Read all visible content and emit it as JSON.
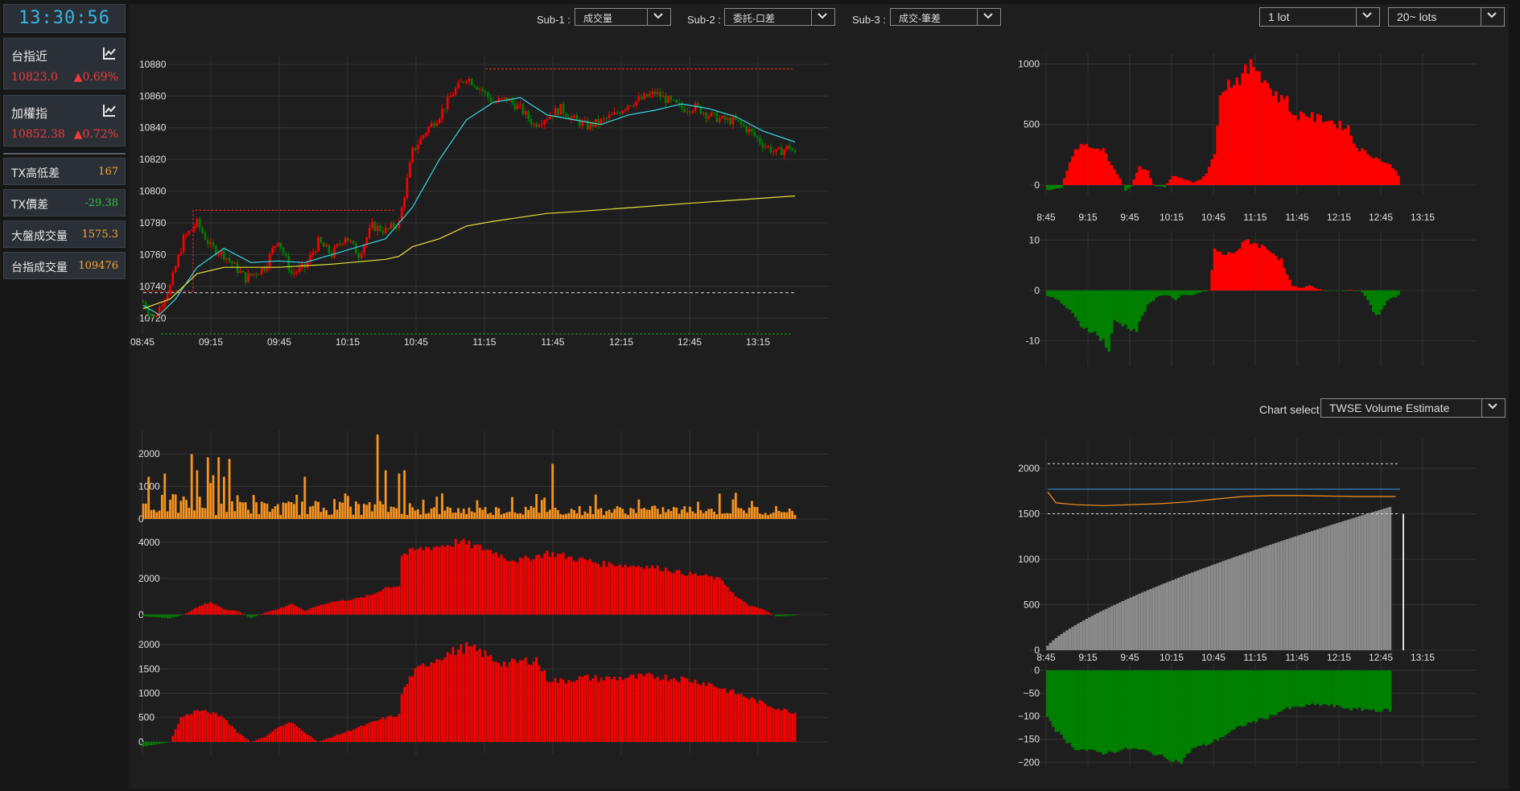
{
  "clock": "13:30:56",
  "quotes": [
    {
      "name": "台指近",
      "price": "10823.0",
      "change": "0.69%"
    },
    {
      "name": "加權指",
      "price": "10852.38",
      "change": "0.72%"
    }
  ],
  "stats": [
    {
      "label": "TX高低差",
      "value": "167",
      "color": "#f2a83a"
    },
    {
      "label": "TX價差",
      "value": "-29.38",
      "color": "#2fbf4a"
    },
    {
      "label": "大盤成交量",
      "value": "1575.3",
      "color": "#f2a83a"
    },
    {
      "label": "台指成交量",
      "value": "109476",
      "color": "#f2a83a"
    }
  ],
  "toolbar": {
    "sub1_label": "Sub-1 :",
    "sub1_value": "成交量",
    "sub2_label": "Sub-2 :",
    "sub2_value": "委託-口差",
    "sub3_label": "Sub-3 :",
    "sub3_value": "成交-筆差",
    "lot_value": "1 lot",
    "lots_value": "20~ lots"
  },
  "chart_select": {
    "label": "Chart select:",
    "value": "TWSE Volume Estimate"
  },
  "colors": {
    "up": "#ff0000",
    "down": "#008000",
    "vol": "#f7931e",
    "ma_short": "#35d6e6",
    "ma_long": "#e8e03a",
    "est_bar": "#8a8a8a"
  },
  "icons": {
    "quote_chart": "chart-line-icon",
    "dropdown": "chevron-down-icon"
  },
  "chart_data": [
    {
      "id": "main",
      "type": "candlestick",
      "x_ticks": [
        "08:45",
        "09:15",
        "09:45",
        "10:15",
        "10:45",
        "11:15",
        "11:45",
        "12:15",
        "12:45",
        "13:15"
      ],
      "y_ticks": [
        "10720",
        "10740",
        "10760",
        "10780",
        "10800",
        "10820",
        "10840",
        "10860",
        "10880"
      ],
      "ylim": [
        10710,
        10885
      ],
      "high": 10877,
      "low": 10710,
      "reference": 10736,
      "close_path": [
        [
          0,
          10730
        ],
        [
          4,
          10720
        ],
        [
          10,
          10740
        ],
        [
          15,
          10770
        ],
        [
          20,
          10780
        ],
        [
          25,
          10765
        ],
        [
          30,
          10760
        ],
        [
          38,
          10745
        ],
        [
          45,
          10752
        ],
        [
          50,
          10770
        ],
        [
          55,
          10748
        ],
        [
          60,
          10752
        ],
        [
          65,
          10768
        ],
        [
          70,
          10760
        ],
        [
          75,
          10772
        ],
        [
          80,
          10760
        ],
        [
          85,
          10778
        ],
        [
          90,
          10775
        ],
        [
          95,
          10780
        ],
        [
          100,
          10825
        ],
        [
          105,
          10838
        ],
        [
          110,
          10848
        ],
        [
          115,
          10862
        ],
        [
          120,
          10872
        ],
        [
          125,
          10865
        ],
        [
          130,
          10856
        ],
        [
          135,
          10858
        ],
        [
          140,
          10852
        ],
        [
          145,
          10842
        ],
        [
          150,
          10847
        ],
        [
          155,
          10852
        ],
        [
          160,
          10845
        ],
        [
          165,
          10841
        ],
        [
          170,
          10844
        ],
        [
          175,
          10848
        ],
        [
          180,
          10855
        ],
        [
          185,
          10858
        ],
        [
          190,
          10862
        ],
        [
          195,
          10857
        ],
        [
          200,
          10852
        ],
        [
          205,
          10853
        ],
        [
          210,
          10848
        ],
        [
          215,
          10845
        ],
        [
          220,
          10844
        ],
        [
          225,
          10838
        ],
        [
          230,
          10830
        ],
        [
          235,
          10824
        ],
        [
          240,
          10828
        ],
        [
          242,
          10823
        ]
      ],
      "ma_short": [
        [
          0,
          10728
        ],
        [
          6,
          10722
        ],
        [
          12,
          10732
        ],
        [
          20,
          10752
        ],
        [
          30,
          10764
        ],
        [
          40,
          10755
        ],
        [
          50,
          10756
        ],
        [
          60,
          10755
        ],
        [
          70,
          10760
        ],
        [
          80,
          10765
        ],
        [
          90,
          10770
        ],
        [
          100,
          10790
        ],
        [
          110,
          10820
        ],
        [
          120,
          10845
        ],
        [
          130,
          10856
        ],
        [
          140,
          10859
        ],
        [
          150,
          10848
        ],
        [
          160,
          10845
        ],
        [
          170,
          10842
        ],
        [
          180,
          10848
        ],
        [
          190,
          10851
        ],
        [
          200,
          10855
        ],
        [
          210,
          10852
        ],
        [
          220,
          10847
        ],
        [
          230,
          10838
        ],
        [
          242,
          10831
        ]
      ],
      "ma_long": [
        [
          0,
          10726
        ],
        [
          10,
          10732
        ],
        [
          20,
          10748
        ],
        [
          30,
          10752
        ],
        [
          50,
          10752
        ],
        [
          70,
          10754
        ],
        [
          90,
          10757
        ],
        [
          95,
          10759
        ],
        [
          100,
          10765
        ],
        [
          110,
          10770
        ],
        [
          120,
          10778
        ],
        [
          130,
          10781
        ],
        [
          150,
          10786
        ],
        [
          160,
          10787
        ],
        [
          200,
          10792
        ],
        [
          242,
          10797
        ]
      ],
      "series": [
        {
          "name": "",
          "values": []
        }
      ]
    },
    {
      "id": "sub1",
      "type": "bar",
      "y_ticks": [
        "0",
        "1000",
        "2000"
      ],
      "ylim": [
        0,
        2600
      ]
    },
    {
      "id": "sub2",
      "type": "bar",
      "y_ticks": [
        "0",
        "2000",
        "4000"
      ],
      "ylim": [
        -500,
        4300
      ],
      "path": [
        [
          0,
          -100
        ],
        [
          10,
          -200
        ],
        [
          15,
          0
        ],
        [
          20,
          400
        ],
        [
          25,
          700
        ],
        [
          30,
          300
        ],
        [
          35,
          200
        ],
        [
          40,
          -200
        ],
        [
          45,
          100
        ],
        [
          50,
          300
        ],
        [
          55,
          600
        ],
        [
          60,
          200
        ],
        [
          65,
          500
        ],
        [
          70,
          700
        ],
        [
          75,
          800
        ],
        [
          80,
          900
        ],
        [
          85,
          1100
        ],
        [
          90,
          1500
        ],
        [
          95,
          1600
        ],
        [
          96,
          3300
        ],
        [
          100,
          3500
        ],
        [
          105,
          3700
        ],
        [
          110,
          3800
        ],
        [
          115,
          3900
        ],
        [
          117,
          4100
        ],
        [
          120,
          3900
        ],
        [
          125,
          3700
        ],
        [
          130,
          3500
        ],
        [
          135,
          3100
        ],
        [
          140,
          3000
        ],
        [
          145,
          3200
        ],
        [
          150,
          3400
        ],
        [
          155,
          3300
        ],
        [
          160,
          3100
        ],
        [
          165,
          3000
        ],
        [
          170,
          2800
        ],
        [
          175,
          2800
        ],
        [
          180,
          2700
        ],
        [
          185,
          2700
        ],
        [
          190,
          2600
        ],
        [
          195,
          2500
        ],
        [
          200,
          2300
        ],
        [
          205,
          2200
        ],
        [
          210,
          2100
        ],
        [
          215,
          1900
        ],
        [
          220,
          1000
        ],
        [
          225,
          500
        ],
        [
          230,
          300
        ],
        [
          235,
          -100
        ],
        [
          242,
          -50
        ]
      ]
    },
    {
      "id": "sub3",
      "type": "bar",
      "y_ticks": [
        "0",
        "500",
        "1000",
        "1500",
        "2000"
      ],
      "ylim": [
        -100,
        2100
      ],
      "path": [
        [
          0,
          -100
        ],
        [
          10,
          0
        ],
        [
          14,
          500
        ],
        [
          20,
          650
        ],
        [
          25,
          600
        ],
        [
          30,
          500
        ],
        [
          35,
          200
        ],
        [
          40,
          0
        ],
        [
          45,
          100
        ],
        [
          50,
          300
        ],
        [
          55,
          400
        ],
        [
          60,
          200
        ],
        [
          65,
          0
        ],
        [
          70,
          100
        ],
        [
          75,
          200
        ],
        [
          80,
          300
        ],
        [
          85,
          400
        ],
        [
          90,
          500
        ],
        [
          95,
          550
        ],
        [
          96,
          1000
        ],
        [
          100,
          1400
        ],
        [
          105,
          1600
        ],
        [
          110,
          1750
        ],
        [
          115,
          1850
        ],
        [
          120,
          1950
        ],
        [
          125,
          1850
        ],
        [
          130,
          1700
        ],
        [
          135,
          1600
        ],
        [
          140,
          1650
        ],
        [
          146,
          1700
        ],
        [
          150,
          1300
        ],
        [
          155,
          1250
        ],
        [
          160,
          1300
        ],
        [
          165,
          1320
        ],
        [
          170,
          1300
        ],
        [
          180,
          1320
        ],
        [
          190,
          1350
        ],
        [
          200,
          1300
        ],
        [
          205,
          1250
        ],
        [
          210,
          1200
        ],
        [
          215,
          1100
        ],
        [
          220,
          1000
        ],
        [
          225,
          900
        ],
        [
          230,
          800
        ],
        [
          235,
          700
        ],
        [
          242,
          600
        ]
      ]
    },
    {
      "id": "right_top",
      "type": "area",
      "x_ticks": [
        "8:45",
        "9:15",
        "9:45",
        "10:15",
        "10:45",
        "11:15",
        "11:45",
        "12:15",
        "12:45",
        "13:15"
      ],
      "y_ticks": [
        "0",
        "500",
        "1000"
      ],
      "ylim": [
        -80,
        1050
      ],
      "path": [
        [
          0,
          -40
        ],
        [
          5,
          -20
        ],
        [
          8,
          200
        ],
        [
          12,
          350
        ],
        [
          16,
          300
        ],
        [
          20,
          300
        ],
        [
          22,
          200
        ],
        [
          26,
          50
        ],
        [
          28,
          -50
        ],
        [
          30,
          -10
        ],
        [
          33,
          150
        ],
        [
          36,
          120
        ],
        [
          38,
          0
        ],
        [
          42,
          -20
        ],
        [
          45,
          80
        ],
        [
          48,
          60
        ],
        [
          50,
          40
        ],
        [
          52,
          20
        ],
        [
          55,
          50
        ],
        [
          57,
          100
        ],
        [
          60,
          250
        ],
        [
          62,
          800
        ],
        [
          66,
          850
        ],
        [
          70,
          900
        ],
        [
          74,
          1000
        ],
        [
          76,
          950
        ],
        [
          80,
          800
        ],
        [
          84,
          700
        ],
        [
          86,
          750
        ],
        [
          88,
          550
        ],
        [
          92,
          600
        ],
        [
          96,
          550
        ],
        [
          100,
          550
        ],
        [
          104,
          500
        ],
        [
          108,
          480
        ],
        [
          110,
          350
        ],
        [
          112,
          300
        ],
        [
          116,
          250
        ],
        [
          120,
          200
        ],
        [
          124,
          150
        ],
        [
          126,
          80
        ]
      ]
    },
    {
      "id": "right_mid",
      "type": "bar",
      "y_ticks": [
        "-10",
        "0",
        "10"
      ],
      "ylim": [
        -15,
        11
      ],
      "path": [
        [
          0,
          -1
        ],
        [
          4,
          -2
        ],
        [
          8,
          -4
        ],
        [
          12,
          -7
        ],
        [
          16,
          -8
        ],
        [
          20,
          -10
        ],
        [
          22,
          -12
        ],
        [
          24,
          -6
        ],
        [
          28,
          -7
        ],
        [
          32,
          -8
        ],
        [
          34,
          -5
        ],
        [
          36,
          -3
        ],
        [
          38,
          -2
        ],
        [
          40,
          -1
        ],
        [
          44,
          -1
        ],
        [
          46,
          -2
        ],
        [
          48,
          -1
        ],
        [
          50,
          -1
        ],
        [
          52,
          -1
        ],
        [
          54,
          -0.5
        ],
        [
          58,
          0
        ],
        [
          60,
          8
        ],
        [
          64,
          7
        ],
        [
          68,
          8
        ],
        [
          72,
          10
        ],
        [
          76,
          9
        ],
        [
          80,
          8
        ],
        [
          84,
          6
        ],
        [
          86,
          3
        ],
        [
          88,
          1
        ],
        [
          90,
          0.5
        ],
        [
          92,
          0.5
        ],
        [
          94,
          1
        ],
        [
          96,
          0.5
        ],
        [
          100,
          0
        ],
        [
          104,
          0
        ],
        [
          108,
          0
        ],
        [
          112,
          0
        ],
        [
          114,
          -1
        ],
        [
          116,
          -3
        ],
        [
          118,
          -5
        ],
        [
          120,
          -4
        ],
        [
          122,
          -2
        ],
        [
          126,
          -1
        ]
      ]
    },
    {
      "id": "estimate",
      "type": "bar",
      "title": "TWSE Volume Estimate",
      "x_ticks": [
        "8:45",
        "9:15",
        "9:45",
        "10:15",
        "10:45",
        "11:15",
        "11:45",
        "12:15",
        "12:45",
        "13:15"
      ],
      "y_ticks": [
        "0",
        "500",
        "1000",
        "1500",
        "2000"
      ],
      "ylim": [
        0,
        2150
      ],
      "levels": [
        2050,
        1770,
        1500
      ],
      "cumulative_end": 1575.3,
      "estimate_line": [
        [
          0,
          1740
        ],
        [
          3,
          1620
        ],
        [
          10,
          1600
        ],
        [
          20,
          1590
        ],
        [
          30,
          1600
        ],
        [
          40,
          1610
        ],
        [
          50,
          1630
        ],
        [
          60,
          1660
        ],
        [
          70,
          1690
        ],
        [
          80,
          1700
        ],
        [
          90,
          1700
        ],
        [
          100,
          1695
        ],
        [
          110,
          1690
        ],
        [
          125,
          1690
        ]
      ]
    },
    {
      "id": "estimate_diff",
      "type": "bar",
      "y_ticks": [
        "0",
        "−50",
        "−100",
        "−150",
        "−200"
      ],
      "ylim": [
        -210,
        0
      ],
      "path": [
        [
          0,
          -100
        ],
        [
          3,
          -130
        ],
        [
          6,
          -150
        ],
        [
          10,
          -170
        ],
        [
          15,
          -175
        ],
        [
          20,
          -180
        ],
        [
          25,
          -175
        ],
        [
          30,
          -170
        ],
        [
          35,
          -175
        ],
        [
          40,
          -185
        ],
        [
          45,
          -195
        ],
        [
          48,
          -200
        ],
        [
          52,
          -170
        ],
        [
          58,
          -160
        ],
        [
          64,
          -140
        ],
        [
          70,
          -120
        ],
        [
          75,
          -110
        ],
        [
          80,
          -100
        ],
        [
          85,
          -85
        ],
        [
          90,
          -80
        ],
        [
          95,
          -75
        ],
        [
          100,
          -75
        ],
        [
          105,
          -80
        ],
        [
          110,
          -85
        ],
        [
          115,
          -85
        ],
        [
          120,
          -88
        ],
        [
          125,
          -85
        ]
      ]
    }
  ]
}
